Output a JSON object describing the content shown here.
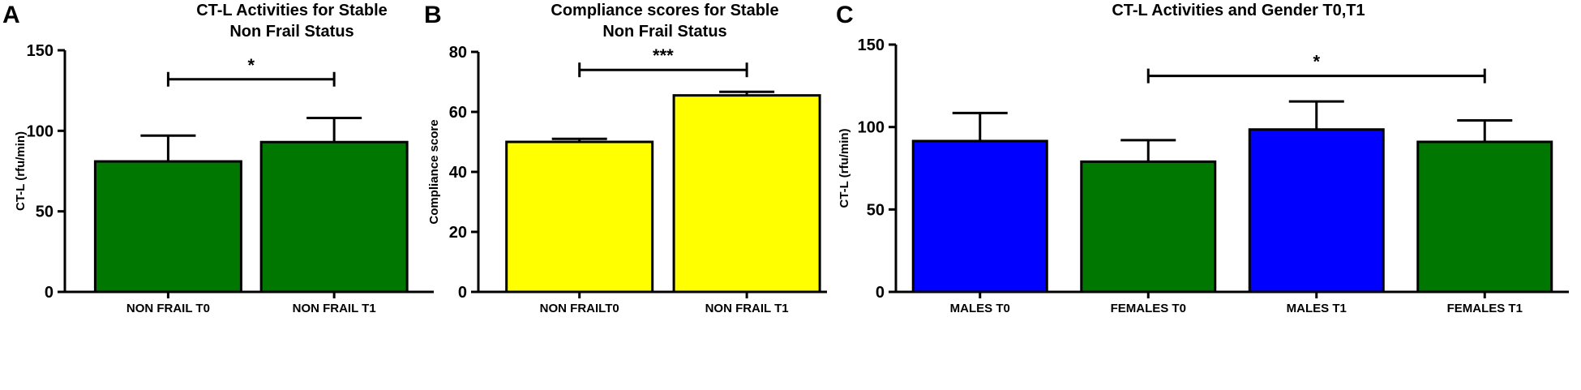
{
  "chart_data": [
    {
      "type": "bar",
      "panel_label": "A",
      "title": "CT-L Activities for Stable\nNon Frail Status",
      "ylabel": "CT-L (rfu/min)",
      "xlabel": "",
      "ylim": [
        0,
        150
      ],
      "yticks": [
        0,
        50,
        100,
        150
      ],
      "categories": [
        "NON FRAIL T0",
        "NON FRAIL T1"
      ],
      "values": [
        81,
        93
      ],
      "errors": [
        16,
        15
      ],
      "colors": [
        "#007700",
        "#007700"
      ],
      "significance": [
        {
          "from": 0,
          "to": 1,
          "label": "*",
          "y": 132
        }
      ]
    },
    {
      "type": "bar",
      "panel_label": "B",
      "title": "Compliance scores for Stable\nNon Frail Status",
      "ylabel": "Compliance score",
      "xlabel": "",
      "ylim": [
        0,
        80
      ],
      "yticks": [
        0,
        20,
        40,
        60,
        80
      ],
      "categories": [
        "NON FRAILT0",
        "NON FRAIL T1"
      ],
      "values": [
        50,
        65.5
      ],
      "errors": [
        1,
        1.2
      ],
      "colors": [
        "#ffff00",
        "#ffff00"
      ],
      "significance": [
        {
          "from": 0,
          "to": 1,
          "label": "***",
          "y": 74
        }
      ]
    },
    {
      "type": "bar",
      "panel_label": "C",
      "title": "CT-L Activities and Gender T0,T1",
      "ylabel": "CT-L (rfu/min)",
      "xlabel": "",
      "ylim": [
        0,
        150
      ],
      "yticks": [
        0,
        50,
        100,
        150
      ],
      "categories": [
        "MALES T0",
        "FEMALES T0",
        "MALES T1",
        "FEMALES T1"
      ],
      "values": [
        91.5,
        79,
        98.5,
        91
      ],
      "errors": [
        17,
        13,
        17,
        13
      ],
      "colors": [
        "#0000ff",
        "#007700",
        "#0000ff",
        "#007700"
      ],
      "significance": [
        {
          "from": 1,
          "to": 3,
          "label": "*",
          "y": 131
        }
      ]
    }
  ]
}
